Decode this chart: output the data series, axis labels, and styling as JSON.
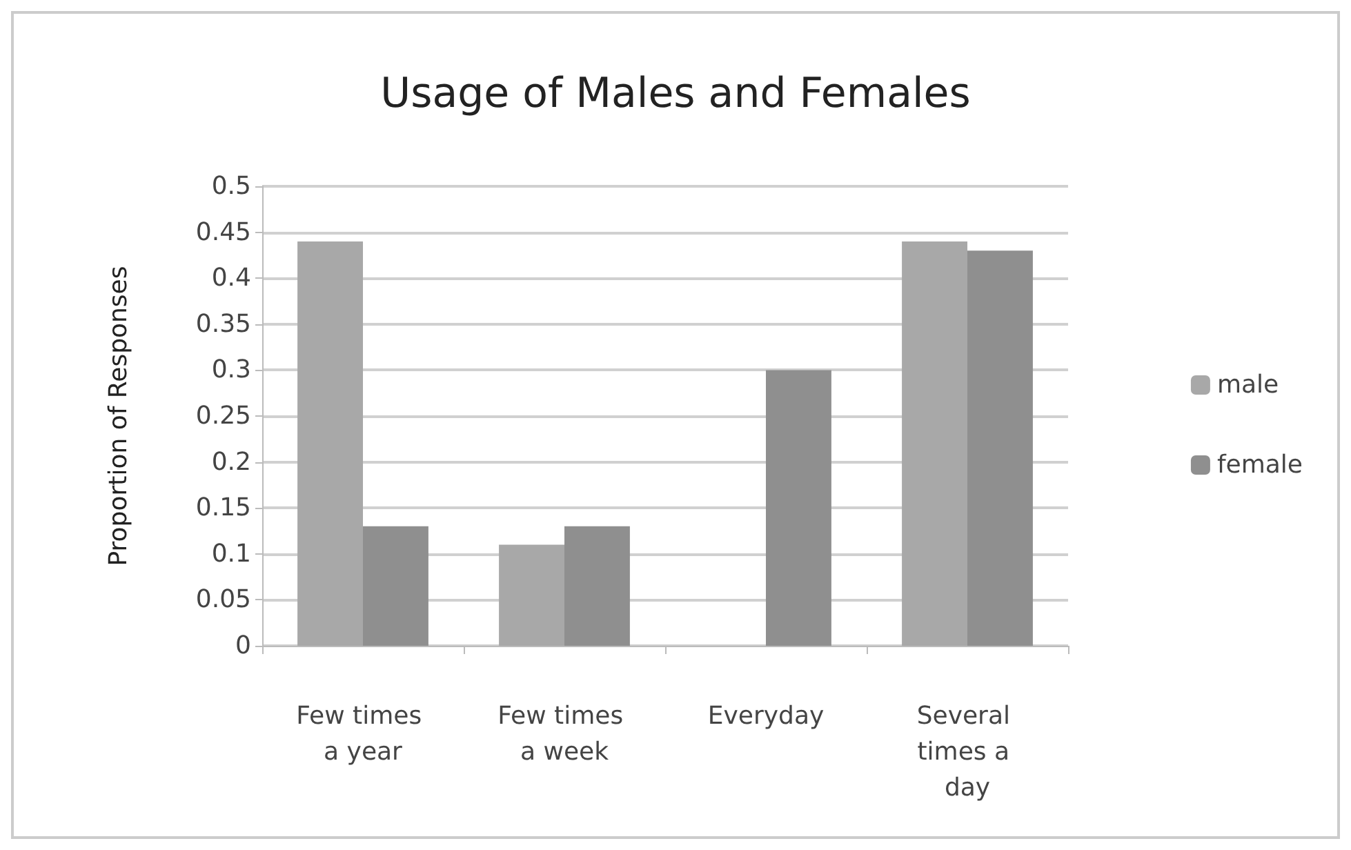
{
  "chart_data": {
    "type": "bar",
    "title": "Usage of Males and Females",
    "ylabel": "Proportion of Responses",
    "categories": [
      "Few times a year",
      "Few times a week",
      "Everyday",
      "Several times a day"
    ],
    "series": [
      {
        "name": "male",
        "color": "#a8a8a8",
        "values": [
          0.44,
          0.11,
          0,
          0.44
        ]
      },
      {
        "name": "female",
        "color": "#8f8f8f",
        "values": [
          0.13,
          0.13,
          0.3,
          0.43
        ]
      }
    ],
    "ylim": [
      0,
      0.5
    ],
    "yticks": [
      0,
      0.05,
      0.1,
      0.15,
      0.2,
      0.25,
      0.3,
      0.35,
      0.4,
      0.45,
      0.5
    ],
    "grid": "y",
    "legend": "right"
  }
}
